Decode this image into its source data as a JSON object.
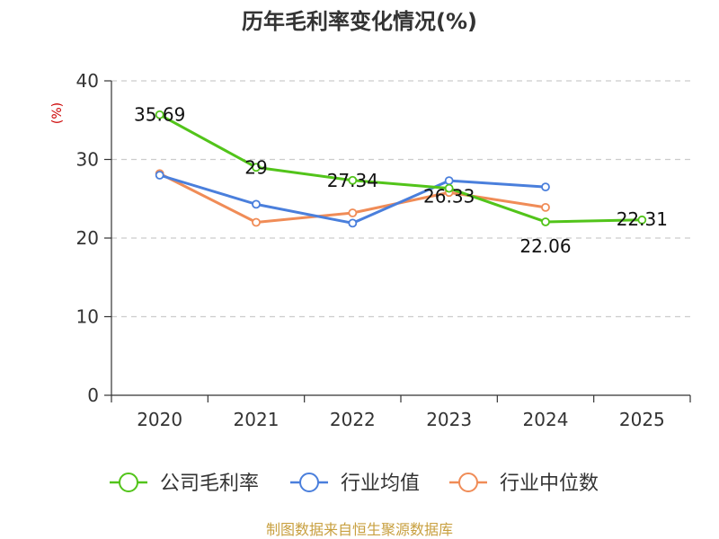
{
  "chart_data": {
    "type": "line",
    "title": "历年毛利率变化情况(%)",
    "xlabel": "",
    "ylabel": "(%)",
    "categories": [
      "2020",
      "2021",
      "2022",
      "2023",
      "2024",
      "2025"
    ],
    "ylim": [
      0,
      40
    ],
    "yticks": [
      "0",
      "10",
      "20",
      "30",
      "40"
    ],
    "grid": true,
    "legend_position": "bottom",
    "series": [
      {
        "name": "公司毛利率",
        "color": "#52c41a",
        "values": [
          35.69,
          29,
          27.34,
          26.33,
          22.06,
          22.31
        ],
        "labels": [
          "35.69",
          "29",
          "27.34",
          "26.33",
          "22.06",
          "22.31"
        ]
      },
      {
        "name": "行业均值",
        "color": "#4a7fdc",
        "values": [
          28.0,
          24.3,
          21.9,
          27.3,
          26.5,
          null
        ]
      },
      {
        "name": "行业中位数",
        "color": "#f08c57",
        "values": [
          28.2,
          22.0,
          23.2,
          25.8,
          23.9,
          null
        ]
      }
    ]
  },
  "colors": {
    "ylabel": "#cc0000",
    "source": "#c8a040",
    "grid": "#cccccc",
    "axis": "#333333"
  },
  "source": "制图数据来自恒生聚源数据库"
}
